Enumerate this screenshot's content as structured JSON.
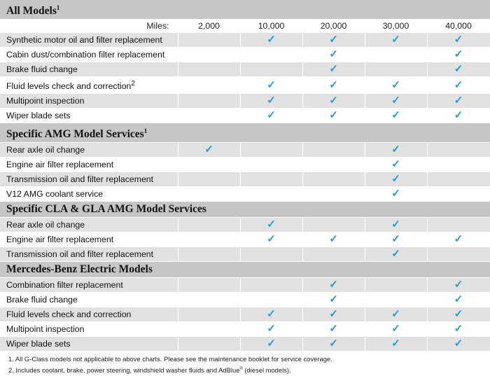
{
  "miles_label": "Miles:",
  "miles": [
    "2,000",
    "10,000",
    "20,000",
    "30,000",
    "40,000"
  ],
  "check_glyph": "✓",
  "check_color": "#1a9fd9",
  "sections": [
    {
      "title": "All Models",
      "sup": "1",
      "rows": [
        {
          "label": "Synthetic motor oil and filter replacement",
          "sup": "",
          "checks": [
            false,
            true,
            true,
            true,
            true
          ]
        },
        {
          "label": "Cabin dust/combination filter replacement",
          "sup": "",
          "checks": [
            false,
            false,
            true,
            false,
            true
          ]
        },
        {
          "label": "Brake fluid change",
          "sup": "",
          "checks": [
            false,
            false,
            true,
            false,
            true
          ]
        },
        {
          "label": "Fluid levels check and correction",
          "sup": "2",
          "checks": [
            false,
            true,
            true,
            true,
            true
          ]
        },
        {
          "label": "Multipoint inspection",
          "sup": "",
          "checks": [
            false,
            true,
            true,
            true,
            true
          ]
        },
        {
          "label": "Wiper blade sets",
          "sup": "",
          "checks": [
            false,
            true,
            true,
            true,
            true
          ]
        }
      ]
    },
    {
      "title": "Specific AMG Model Services",
      "sup": "1",
      "rows": [
        {
          "label": "Rear axle oil change",
          "sup": "",
          "checks": [
            true,
            false,
            false,
            true,
            false
          ]
        },
        {
          "label": "Engine air filter replacement",
          "sup": "",
          "checks": [
            false,
            false,
            false,
            true,
            false
          ]
        },
        {
          "label": "Transmission oil and filter replacement",
          "sup": "",
          "checks": [
            false,
            false,
            false,
            true,
            false
          ]
        },
        {
          "label": "V12 AMG coolant service",
          "sup": "",
          "checks": [
            false,
            false,
            false,
            true,
            false
          ]
        }
      ]
    },
    {
      "title": "Specific CLA & GLA AMG Model Services",
      "sup": "",
      "rows": [
        {
          "label": "Rear axle oil change",
          "sup": "",
          "checks": [
            false,
            true,
            false,
            true,
            false
          ]
        },
        {
          "label": "Engine air filter replacement",
          "sup": "",
          "checks": [
            false,
            true,
            true,
            true,
            true
          ]
        },
        {
          "label": "Transmission oil and filter replacement",
          "sup": "",
          "checks": [
            false,
            false,
            false,
            true,
            false
          ]
        }
      ]
    },
    {
      "title": "Mercedes-Benz Electric Models",
      "sup": "",
      "rows": [
        {
          "label": "Combination filter replacement",
          "sup": "",
          "checks": [
            false,
            false,
            true,
            false,
            true
          ]
        },
        {
          "label": "Brake fluid change",
          "sup": "",
          "checks": [
            false,
            false,
            true,
            false,
            true
          ]
        },
        {
          "label": "Fluid levels check and correction",
          "sup": "",
          "checks": [
            false,
            true,
            true,
            true,
            true
          ]
        },
        {
          "label": "Multipoint inspection",
          "sup": "",
          "checks": [
            false,
            true,
            true,
            true,
            true
          ]
        },
        {
          "label": "Wiper blade sets",
          "sup": "",
          "checks": [
            false,
            true,
            true,
            true,
            true
          ]
        }
      ]
    }
  ],
  "footnotes": [
    {
      "text": "1. All G-Class models not applicable to above charts. Please see the maintenance booklet for service coverage.",
      "sup": "",
      "after": ""
    },
    {
      "text": "2. Includes coolant, brake, power steering, windshield washer fluids and AdBlue",
      "sup": "®",
      "after": " (diesel models)."
    }
  ]
}
